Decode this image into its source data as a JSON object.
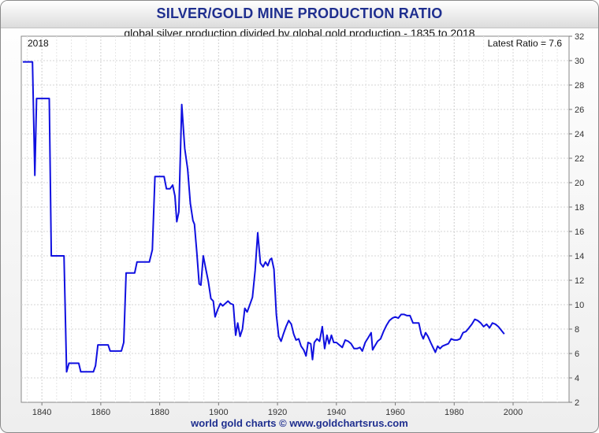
{
  "header": {
    "title": "SILVER/GOLD MINE PRODUCTION RATIO",
    "subtitle": "global silver production divided by global gold production - 1835 to 2018"
  },
  "footer": {
    "credit": "world gold charts © www.goldchartsrus.com"
  },
  "colors": {
    "line": "#1010e0",
    "title": "#1f2f8f",
    "grid": "#d4d4d4"
  },
  "chart_data": {
    "type": "line",
    "annotations": {
      "top_left": "2018",
      "top_right": "Latest Ratio = 7.6"
    },
    "xlim": [
      1833,
      2019
    ],
    "ylim": [
      2,
      32
    ],
    "x_ticks": [
      1840,
      1860,
      1880,
      1900,
      1920,
      1940,
      1960,
      1980,
      2000
    ],
    "y_ticks": [
      2,
      4,
      6,
      8,
      10,
      12,
      14,
      16,
      18,
      20,
      22,
      24,
      26,
      28,
      30,
      32
    ],
    "y_axis_side": "right",
    "grid": true,
    "series": [
      {
        "points": [
          [
            1833.5,
            29.9
          ],
          [
            1836.8,
            29.9
          ],
          [
            1837.6,
            20.6
          ],
          [
            1838.2,
            26.9
          ],
          [
            1842.5,
            26.9
          ],
          [
            1843.2,
            14.0
          ],
          [
            1847.5,
            14.0
          ],
          [
            1848.4,
            4.5
          ],
          [
            1849.2,
            5.2
          ],
          [
            1852.5,
            5.2
          ],
          [
            1853.2,
            4.5
          ],
          [
            1857.5,
            4.5
          ],
          [
            1858.2,
            5.0
          ],
          [
            1859.0,
            6.7
          ],
          [
            1862.5,
            6.7
          ],
          [
            1863.2,
            6.2
          ],
          [
            1867.0,
            6.2
          ],
          [
            1867.8,
            6.9
          ],
          [
            1868.6,
            12.6
          ],
          [
            1871.5,
            12.6
          ],
          [
            1872.3,
            13.5
          ],
          [
            1876.5,
            13.5
          ],
          [
            1877.5,
            14.5
          ],
          [
            1878.4,
            20.5
          ],
          [
            1881.5,
            20.5
          ],
          [
            1882.3,
            19.5
          ],
          [
            1883.5,
            19.5
          ],
          [
            1884.4,
            19.8
          ],
          [
            1885.2,
            18.9
          ],
          [
            1885.8,
            16.8
          ],
          [
            1886.5,
            17.6
          ],
          [
            1887.5,
            26.4
          ],
          [
            1888.5,
            22.8
          ],
          [
            1889.5,
            21.1
          ],
          [
            1890.4,
            18.3
          ],
          [
            1891.3,
            16.9
          ],
          [
            1891.8,
            16.6
          ],
          [
            1892.6,
            14.3
          ],
          [
            1893.4,
            11.7
          ],
          [
            1894.0,
            11.6
          ],
          [
            1894.8,
            14.0
          ],
          [
            1895.6,
            13.0
          ],
          [
            1896.5,
            11.9
          ],
          [
            1897.4,
            10.5
          ],
          [
            1898.2,
            10.3
          ],
          [
            1898.8,
            9.0
          ],
          [
            1899.7,
            9.6
          ],
          [
            1900.6,
            10.1
          ],
          [
            1901.4,
            9.9
          ],
          [
            1902.3,
            10.1
          ],
          [
            1903.2,
            10.3
          ],
          [
            1904.0,
            10.1
          ],
          [
            1905.0,
            10.0
          ],
          [
            1905.8,
            7.5
          ],
          [
            1906.5,
            8.5
          ],
          [
            1907.3,
            7.4
          ],
          [
            1908.1,
            8.0
          ],
          [
            1908.9,
            9.7
          ],
          [
            1909.7,
            9.4
          ],
          [
            1910.6,
            10.0
          ],
          [
            1911.5,
            10.6
          ],
          [
            1912.4,
            12.8
          ],
          [
            1913.3,
            15.9
          ],
          [
            1914.2,
            13.4
          ],
          [
            1915.1,
            13.1
          ],
          [
            1915.9,
            13.5
          ],
          [
            1916.7,
            13.2
          ],
          [
            1917.5,
            13.7
          ],
          [
            1918.0,
            13.8
          ],
          [
            1918.8,
            12.9
          ],
          [
            1919.6,
            9.2
          ],
          [
            1920.4,
            7.4
          ],
          [
            1921.2,
            7.0
          ],
          [
            1922.0,
            7.6
          ],
          [
            1922.9,
            8.2
          ],
          [
            1923.8,
            8.7
          ],
          [
            1924.7,
            8.4
          ],
          [
            1925.5,
            7.6
          ],
          [
            1926.3,
            7.1
          ],
          [
            1927.2,
            7.2
          ],
          [
            1928.0,
            6.6
          ],
          [
            1928.9,
            6.3
          ],
          [
            1929.7,
            5.8
          ],
          [
            1930.4,
            6.9
          ],
          [
            1931.3,
            6.8
          ],
          [
            1931.9,
            5.5
          ],
          [
            1932.5,
            6.9
          ],
          [
            1933.4,
            7.2
          ],
          [
            1934.3,
            7.0
          ],
          [
            1935.2,
            8.2
          ],
          [
            1936.0,
            6.4
          ],
          [
            1936.8,
            7.5
          ],
          [
            1937.5,
            6.8
          ],
          [
            1938.3,
            7.5
          ],
          [
            1939.1,
            6.9
          ],
          [
            1940.0,
            6.9
          ],
          [
            1941.0,
            6.7
          ],
          [
            1942.0,
            6.5
          ],
          [
            1943.0,
            7.1
          ],
          [
            1944.0,
            7.0
          ],
          [
            1945.0,
            6.8
          ],
          [
            1946.0,
            6.4
          ],
          [
            1947.0,
            6.4
          ],
          [
            1948.0,
            6.5
          ],
          [
            1948.8,
            6.2
          ],
          [
            1949.8,
            6.9
          ],
          [
            1950.8,
            7.3
          ],
          [
            1951.8,
            7.7
          ],
          [
            1952.3,
            6.3
          ],
          [
            1953.0,
            6.6
          ],
          [
            1954.0,
            7.0
          ],
          [
            1955.0,
            7.2
          ],
          [
            1956.0,
            7.8
          ],
          [
            1957.0,
            8.3
          ],
          [
            1958.0,
            8.7
          ],
          [
            1959.0,
            8.9
          ],
          [
            1960.0,
            9.0
          ],
          [
            1961.0,
            8.9
          ],
          [
            1962.0,
            9.2
          ],
          [
            1963.0,
            9.2
          ],
          [
            1964.0,
            9.1
          ],
          [
            1965.0,
            9.1
          ],
          [
            1966.0,
            8.5
          ],
          [
            1967.0,
            8.5
          ],
          [
            1968.0,
            8.5
          ],
          [
            1968.8,
            7.6
          ],
          [
            1969.5,
            7.2
          ],
          [
            1970.3,
            7.7
          ],
          [
            1971.1,
            7.4
          ],
          [
            1972.0,
            6.9
          ],
          [
            1972.8,
            6.5
          ],
          [
            1973.6,
            6.1
          ],
          [
            1974.4,
            6.6
          ],
          [
            1975.2,
            6.4
          ],
          [
            1976.0,
            6.6
          ],
          [
            1977.0,
            6.7
          ],
          [
            1978.0,
            6.8
          ],
          [
            1979.0,
            7.2
          ],
          [
            1980.0,
            7.1
          ],
          [
            1981.0,
            7.1
          ],
          [
            1982.0,
            7.2
          ],
          [
            1983.0,
            7.7
          ],
          [
            1984.0,
            7.8
          ],
          [
            1985.0,
            8.1
          ],
          [
            1986.0,
            8.4
          ],
          [
            1987.0,
            8.8
          ],
          [
            1988.0,
            8.7
          ],
          [
            1989.0,
            8.5
          ],
          [
            1990.0,
            8.2
          ],
          [
            1991.0,
            8.4
          ],
          [
            1992.0,
            8.1
          ],
          [
            1993.0,
            8.5
          ],
          [
            1994.0,
            8.4
          ],
          [
            1995.0,
            8.2
          ],
          [
            1996.0,
            7.9
          ],
          [
            1997.0,
            7.6
          ]
        ]
      }
    ]
  }
}
